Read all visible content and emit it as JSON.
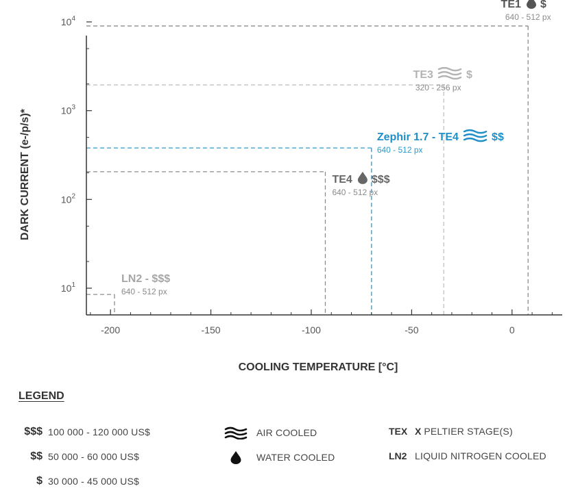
{
  "chart_data": {
    "type": "scatter",
    "xlabel": "COOLING TEMPERATURE [°C]",
    "ylabel": "DARK CURRENT (e-/p/s)*",
    "xlim": [
      -212,
      25
    ],
    "ylim": [
      5,
      10000
    ],
    "yscale": "log",
    "x_ticks": [
      -200,
      -150,
      -100,
      -50,
      0
    ],
    "x_tick_labels": [
      "-200",
      "-150",
      "-100",
      "-50",
      "0"
    ],
    "y_ticks": [
      10,
      100,
      1000,
      10000
    ],
    "y_tick_labels": [
      {
        "base": "10",
        "exp": "1"
      },
      {
        "base": "10",
        "exp": "2"
      },
      {
        "base": "10",
        "exp": "3"
      },
      {
        "base": "10",
        "exp": "4"
      }
    ],
    "grid": false,
    "legend_position": "bottom",
    "series": [
      {
        "id": "te1",
        "label": "TE1",
        "resolution": "640 - 512 px",
        "cost": "$",
        "cooling": "water",
        "x": 8,
        "y": 9000,
        "color": "#8c8c8c",
        "text_color": "#555555"
      },
      {
        "id": "te3",
        "label": "TE3",
        "resolution": "320 - 256 px",
        "cost": "$",
        "cooling": "air",
        "x": -34,
        "y": 1950,
        "color": "#c2c2c2",
        "text_color": "#b3b3b3"
      },
      {
        "id": "zephir",
        "label": "Zephir 1.7 - TE4",
        "resolution": "640 - 512 px",
        "cost": "$$",
        "cooling": "air",
        "x": -70,
        "y": 380,
        "color": "#2a9ad0",
        "text_color": "#1e8fc8"
      },
      {
        "id": "te4",
        "label": "TE4",
        "resolution": "640 - 512 px",
        "cost": "$$$",
        "cooling": "water",
        "x": -93,
        "y": 205,
        "color": "#8c8c8c",
        "text_color": "#666666"
      },
      {
        "id": "ln2",
        "label": "LN2 - $$$",
        "resolution": "640 - 512 px",
        "cost": "",
        "cooling": "none",
        "x": -198,
        "y": 8.5,
        "color": "#8c8c8c",
        "text_color": "#a6a6a6"
      }
    ]
  },
  "legend": {
    "title": "LEGEND",
    "costs": [
      {
        "symbol": "$$$",
        "text": "100 000 - 120 000 US$"
      },
      {
        "symbol": "$$",
        "text": "50 000 - 60 000 US$"
      },
      {
        "symbol": "$",
        "text": "30 000 - 45 000 US$"
      }
    ],
    "cooling": [
      {
        "icon": "air-waves-icon",
        "text": "AIR COOLED"
      },
      {
        "icon": "water-drop-icon",
        "text": "WATER COOLED"
      }
    ],
    "codes": [
      {
        "code": "TEX",
        "bold_part": "X",
        "text": "PELTIER STAGE(S)"
      },
      {
        "code": "LN2",
        "bold_part": "",
        "text": "LIQUID NITROGEN COOLED"
      }
    ]
  }
}
